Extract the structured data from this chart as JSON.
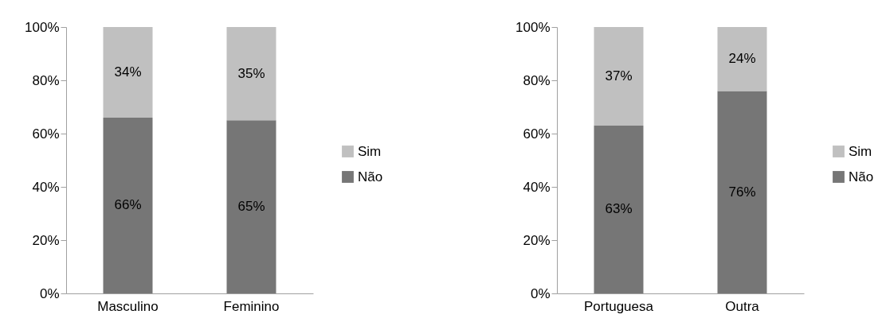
{
  "chart_data": [
    {
      "type": "bar",
      "stacked": true,
      "categories": [
        "Masculino",
        "Feminino"
      ],
      "ylim": [
        0,
        100
      ],
      "yticks": [
        {
          "value": 0,
          "label": "0%"
        },
        {
          "value": 20,
          "label": "20%"
        },
        {
          "value": 40,
          "label": "40%"
        },
        {
          "value": 60,
          "label": "60%"
        },
        {
          "value": 80,
          "label": "80%"
        },
        {
          "value": 100,
          "label": "100%"
        }
      ],
      "grid": false,
      "legend": "right",
      "series": [
        {
          "name": "Não",
          "color": "#767676",
          "values": [
            66,
            65
          ],
          "value_labels": [
            "66%",
            "65%"
          ]
        },
        {
          "name": "Sim",
          "color": "#c0c0c0",
          "values": [
            34,
            35
          ],
          "value_labels": [
            "34%",
            "35%"
          ]
        }
      ]
    },
    {
      "type": "bar",
      "stacked": true,
      "categories": [
        "Portuguesa",
        "Outra"
      ],
      "ylim": [
        0,
        100
      ],
      "yticks": [
        {
          "value": 0,
          "label": "0%"
        },
        {
          "value": 20,
          "label": "20%"
        },
        {
          "value": 40,
          "label": "40%"
        },
        {
          "value": 60,
          "label": "60%"
        },
        {
          "value": 80,
          "label": "80%"
        },
        {
          "value": 100,
          "label": "100%"
        }
      ],
      "grid": false,
      "legend": "right",
      "series": [
        {
          "name": "Não",
          "color": "#767676",
          "values": [
            63,
            76
          ],
          "value_labels": [
            "63%",
            "76%"
          ]
        },
        {
          "name": "Sim",
          "color": "#c0c0c0",
          "values": [
            37,
            24
          ],
          "value_labels": [
            "37%",
            "24%"
          ]
        }
      ]
    }
  ]
}
